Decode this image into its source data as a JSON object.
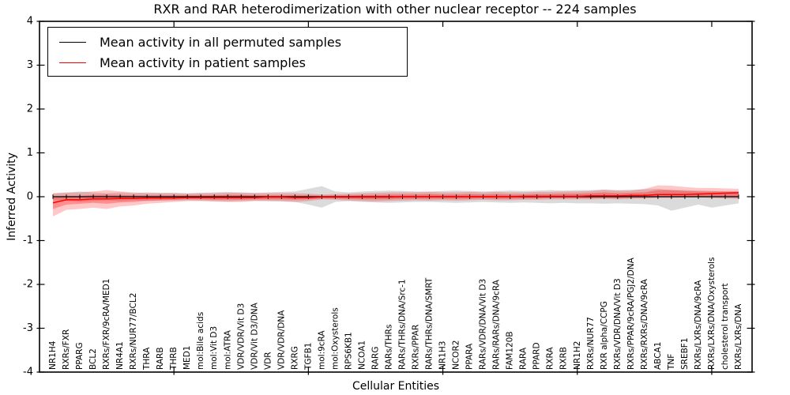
{
  "chart_data": {
    "type": "line",
    "title": "RXR and RAR heterodimerization with other nuclear receptor -- 224 samples",
    "xlabel": "Cellular Entities",
    "ylabel": "Inferred Activity",
    "ylim": [
      -4,
      4
    ],
    "grid": false,
    "legend_position": "upper left",
    "ytick_values": [
      4,
      3,
      2,
      1,
      0,
      -1,
      -2,
      -3,
      -4
    ],
    "ytick_labels": [
      "4",
      "3",
      "2",
      "1",
      "0",
      "-1",
      "-2",
      "-3",
      "-4"
    ],
    "xtick_major_positions": [
      10,
      20,
      30,
      40,
      50
    ],
    "categories": [
      "NR1H4",
      "RXRs/FXR",
      "PPARG",
      "BCL2",
      "RXRs/FXR/9cRA/MED1",
      "NR4A1",
      "RXRs/NUR77/BCL2",
      "THRA",
      "RARB",
      "THRB",
      "MED1",
      "mol:Bile acids",
      "mol:Vit D3",
      "mol:ATRA",
      "VDR/VDR/Vit D3",
      "VDR/Vit D3/DNA",
      "VDR",
      "VDR/VDR/DNA",
      "RXRG",
      "TGFB1",
      "mol:9cRA",
      "mol:Oxysterols",
      "RPS6KB1",
      "NCOA1",
      "RARG",
      "RARs/THRs",
      "RARs/THRs/DNA/Src-1",
      "RXRs/PPAR",
      "RARs/THRs/DNA/SMRT",
      "NR1H3",
      "NCOR2",
      "PPARA",
      "RARs/VDR/DNA/Vit D3",
      "RARs/RARs/DNA/9cRA",
      "FAM120B",
      "RARA",
      "PPARD",
      "RXRA",
      "RXRB",
      "NR1H2",
      "RXRs/NUR77",
      "RXR alpha/CCPG",
      "RXRs/VDR/DNA/Vit D3",
      "RXRs/PPAR/9cRA/PGJ2/DNA",
      "RXRs/RXRs/DNA/9cRA",
      "ABCA1",
      "TNF",
      "SREBF1",
      "RXRs/LXRs/DNA/9cRA",
      "RXRs/LXRs/DNA/Oxysterols",
      "cholesterol transport",
      "RXRs/LXRs/DNA"
    ],
    "series": [
      {
        "name": "Mean activity in all permuted samples",
        "color": "#000000",
        "band_color": "rgba(0,0,0,0.14)",
        "values": [
          0,
          0,
          0,
          0,
          0,
          0,
          0,
          0,
          0,
          0,
          0,
          0,
          0,
          0,
          0,
          0,
          0,
          0,
          0,
          0,
          0,
          0,
          0,
          0,
          0,
          0,
          0,
          0,
          0,
          0,
          0,
          0,
          0,
          0,
          0,
          0,
          0,
          0,
          0,
          0,
          0,
          0,
          0,
          0,
          0,
          0,
          0,
          0,
          0,
          0,
          0,
          0
        ],
        "band_hi": [
          0.07,
          0.09,
          0.12,
          0.1,
          0.08,
          0.1,
          0.08,
          0.1,
          0.09,
          0.09,
          0.08,
          0.09,
          0.1,
          0.11,
          0.1,
          0.09,
          0.1,
          0.11,
          0.12,
          0.18,
          0.24,
          0.12,
          0.1,
          0.12,
          0.13,
          0.14,
          0.13,
          0.12,
          0.12,
          0.13,
          0.14,
          0.13,
          0.12,
          0.13,
          0.14,
          0.13,
          0.14,
          0.15,
          0.14,
          0.15,
          0.15,
          0.16,
          0.15,
          0.16,
          0.17,
          0.18,
          0.15,
          0.15,
          0.14,
          0.13,
          0.12,
          0.12
        ],
        "band_lo": [
          -0.07,
          -0.09,
          -0.12,
          -0.1,
          -0.08,
          -0.1,
          -0.08,
          -0.1,
          -0.09,
          -0.09,
          -0.08,
          -0.09,
          -0.1,
          -0.11,
          -0.1,
          -0.09,
          -0.1,
          -0.11,
          -0.12,
          -0.18,
          -0.25,
          -0.12,
          -0.1,
          -0.12,
          -0.13,
          -0.14,
          -0.13,
          -0.12,
          -0.12,
          -0.13,
          -0.14,
          -0.13,
          -0.12,
          -0.13,
          -0.14,
          -0.13,
          -0.14,
          -0.15,
          -0.14,
          -0.15,
          -0.15,
          -0.16,
          -0.15,
          -0.16,
          -0.17,
          -0.2,
          -0.32,
          -0.25,
          -0.18,
          -0.25,
          -0.2,
          -0.15
        ]
      },
      {
        "name": "Mean activity in patient samples",
        "color": "#ff0000",
        "band_color": "rgba(255,0,0,0.22)",
        "inner_band_color": "rgba(255,0,0,0.28)",
        "values": [
          -0.14,
          -0.07,
          -0.07,
          -0.05,
          -0.05,
          -0.04,
          -0.04,
          -0.03,
          -0.03,
          -0.03,
          -0.02,
          -0.02,
          -0.02,
          -0.02,
          -0.02,
          -0.02,
          -0.01,
          -0.01,
          -0.02,
          -0.02,
          -0.01,
          -0.01,
          -0.01,
          -0.01,
          -0.01,
          -0.01,
          0,
          0,
          0,
          0,
          0,
          0,
          0,
          0,
          0,
          0.01,
          0.01,
          0.01,
          0.01,
          0.01,
          0.02,
          0.02,
          0.02,
          0.03,
          0.03,
          0.05,
          0.05,
          0.05,
          0.06,
          0.07,
          0.08,
          0.09
        ],
        "band_hi": [
          0.08,
          0.1,
          0.1,
          0.12,
          0.15,
          0.12,
          0.1,
          0.08,
          0.08,
          0.08,
          0.07,
          0.08,
          0.08,
          0.09,
          0.09,
          0.08,
          0.08,
          0.08,
          0.08,
          0.07,
          0.05,
          0.06,
          0.07,
          0.08,
          0.09,
          0.1,
          0.1,
          0.1,
          0.11,
          0.1,
          0.1,
          0.11,
          0.1,
          0.11,
          0.1,
          0.1,
          0.11,
          0.11,
          0.12,
          0.12,
          0.13,
          0.16,
          0.14,
          0.14,
          0.18,
          0.26,
          0.25,
          0.22,
          0.2,
          0.2,
          0.19,
          0.18
        ],
        "band_lo": [
          -0.45,
          -0.3,
          -0.28,
          -0.25,
          -0.28,
          -0.22,
          -0.2,
          -0.16,
          -0.14,
          -0.12,
          -0.1,
          -0.1,
          -0.11,
          -0.12,
          -0.12,
          -0.1,
          -0.1,
          -0.1,
          -0.12,
          -0.1,
          -0.06,
          -0.07,
          -0.09,
          -0.1,
          -0.11,
          -0.1,
          -0.09,
          -0.08,
          -0.09,
          -0.08,
          -0.09,
          -0.08,
          -0.07,
          -0.08,
          -0.08,
          -0.07,
          -0.07,
          -0.06,
          -0.06,
          -0.06,
          -0.06,
          -0.05,
          -0.06,
          -0.05,
          -0.04,
          -0.03,
          -0.03,
          -0.02,
          -0.02,
          -0.03,
          -0.04,
          -0.05
        ],
        "inner_hi": [
          0.0,
          0.02,
          0.02,
          0.04,
          0.05,
          0.04,
          0.03,
          0.03,
          0.03,
          0.03,
          0.03,
          0.03,
          0.03,
          0.04,
          0.04,
          0.03,
          0.03,
          0.03,
          0.03,
          0.03,
          0.02,
          0.03,
          0.03,
          0.04,
          0.04,
          0.05,
          0.05,
          0.05,
          0.06,
          0.05,
          0.05,
          0.06,
          0.05,
          0.06,
          0.05,
          0.05,
          0.06,
          0.06,
          0.07,
          0.07,
          0.08,
          0.1,
          0.08,
          0.09,
          0.1,
          0.15,
          0.15,
          0.13,
          0.12,
          0.12,
          0.12,
          0.12
        ],
        "inner_lo": [
          -0.28,
          -0.18,
          -0.16,
          -0.14,
          -0.16,
          -0.13,
          -0.12,
          -0.09,
          -0.08,
          -0.07,
          -0.06,
          -0.06,
          -0.07,
          -0.07,
          -0.07,
          -0.06,
          -0.06,
          -0.06,
          -0.07,
          -0.06,
          -0.04,
          -0.04,
          -0.05,
          -0.06,
          -0.06,
          -0.06,
          -0.05,
          -0.05,
          -0.05,
          -0.05,
          -0.05,
          -0.05,
          -0.04,
          -0.05,
          -0.05,
          -0.04,
          -0.04,
          -0.03,
          -0.03,
          -0.03,
          -0.03,
          -0.02,
          -0.03,
          -0.02,
          -0.02,
          -0.01,
          -0.01,
          0.0,
          0.0,
          -0.01,
          -0.01,
          -0.02
        ]
      }
    ]
  }
}
